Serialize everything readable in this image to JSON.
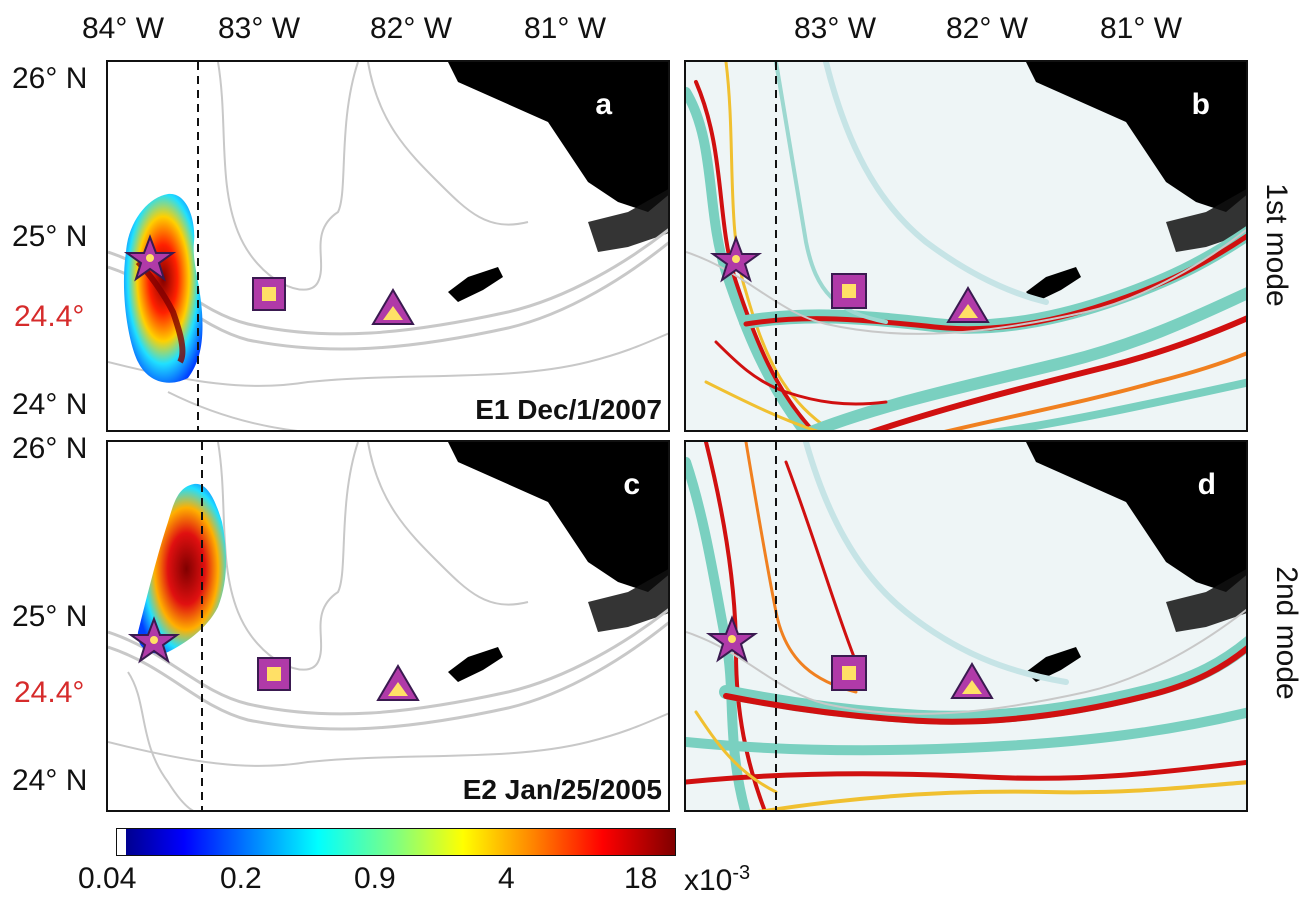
{
  "axes": {
    "lon_top_left": [
      "84° W",
      "83° W",
      "82° W",
      "81° W"
    ],
    "lon_top_right": [
      "83° W",
      "82° W",
      "81° W"
    ],
    "lat_top": [
      "26° N",
      "25° N",
      "24.4°",
      "24° N"
    ],
    "lat_bottom": [
      "26° N",
      "25° N",
      "24.4°",
      "24° N"
    ]
  },
  "panels": {
    "a": {
      "label": "a",
      "event": "E1 Dec/1/2007"
    },
    "b": {
      "label": "b",
      "mode": "1st mode"
    },
    "c": {
      "label": "c",
      "event": "E2 Jan/25/2005"
    },
    "d": {
      "label": "d",
      "mode": "2nd mode"
    }
  },
  "colorbar": {
    "ticks": [
      "0.04",
      "0.2",
      "0.9",
      "4",
      "18"
    ],
    "unit": "x10",
    "exponent": "-3",
    "colormap": [
      "#00008f",
      "#0000ff",
      "#0080ff",
      "#00ffff",
      "#80ff80",
      "#ffff00",
      "#ff8000",
      "#ff0000",
      "#800000"
    ]
  },
  "markers": {
    "star_color": "#b03aa8",
    "square_color": "#b03aa8",
    "triangle_color": "#b03aa8",
    "inner_color": "#ffe066"
  }
}
